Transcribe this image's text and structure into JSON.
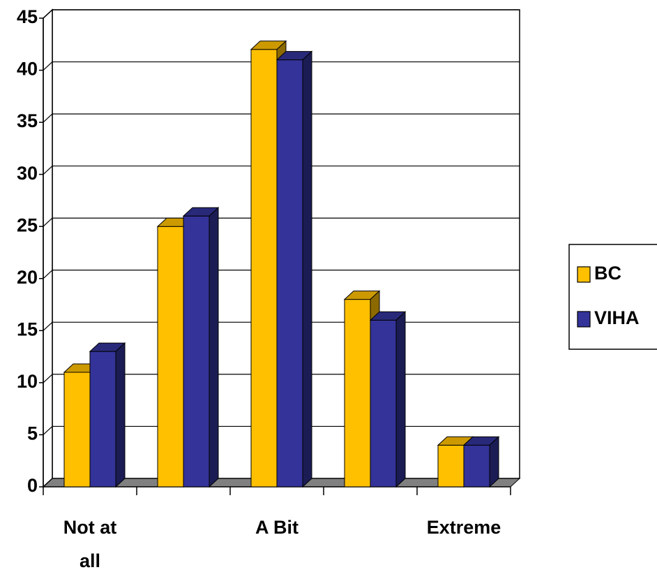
{
  "chart_data": {
    "type": "bar3d",
    "categories": [
      "Not at all",
      null,
      "A Bit",
      null,
      "Extreme"
    ],
    "series": [
      {
        "name": "BC",
        "color": "#ffc000",
        "values": [
          11,
          25,
          42,
          18,
          4
        ]
      },
      {
        "name": "VIHA",
        "color": "#333399",
        "values": [
          13,
          26,
          41,
          16,
          4
        ]
      }
    ],
    "ylim": [
      0,
      45
    ],
    "yticks": [
      0,
      5,
      10,
      15,
      20,
      25,
      30,
      35,
      40,
      45
    ],
    "grid": true
  }
}
